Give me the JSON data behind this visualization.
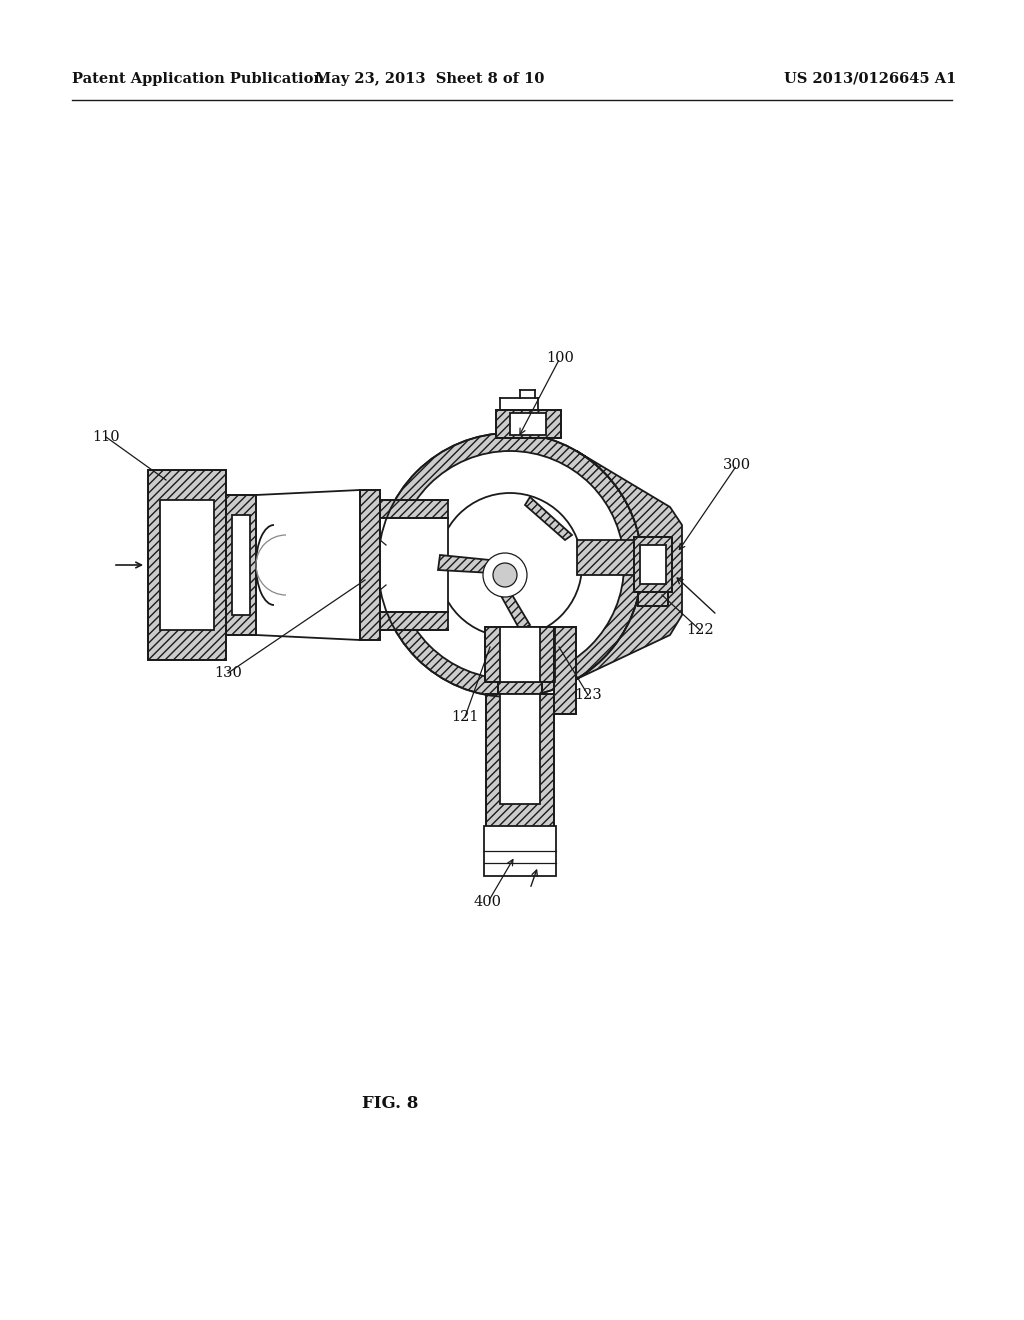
{
  "header_left": "Patent Application Publication",
  "header_mid": "May 23, 2013  Sheet 8 of 10",
  "header_right": "US 2013/0126645 A1",
  "fig_label": "FIG. 8",
  "bg_color": "#ffffff",
  "line_color": "#1a1a1a",
  "label_fontsize": 10.5
}
